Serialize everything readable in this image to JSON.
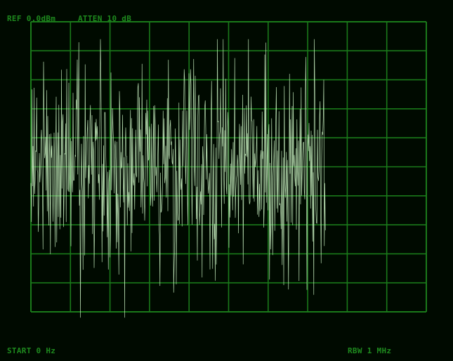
{
  "analyzer": {
    "ref_level": "REF  0.0dBm",
    "attenuation": "ATTEN 10 dB",
    "start_freq": "START  0 Hz",
    "rbw": "RBW 1 MHz"
  },
  "colors": {
    "background": "#000a00",
    "grid": "#1a7a1a",
    "label": "#1e8a1e",
    "trace": "#c8f0c0"
  },
  "chart_data": {
    "type": "line",
    "title": "",
    "xlabel": "",
    "ylabel": "",
    "grid": true,
    "x_divisions": 10,
    "y_divisions": 10,
    "ylim": [
      -100,
      0
    ],
    "y_unit": "dBm",
    "trace_x_extent_fraction": 0.745,
    "noise_floor_dbm_range": [
      -100,
      -5
    ],
    "noise_center_dbm": -50,
    "noise_spread_db": 22,
    "peak_dbm": -6
  }
}
